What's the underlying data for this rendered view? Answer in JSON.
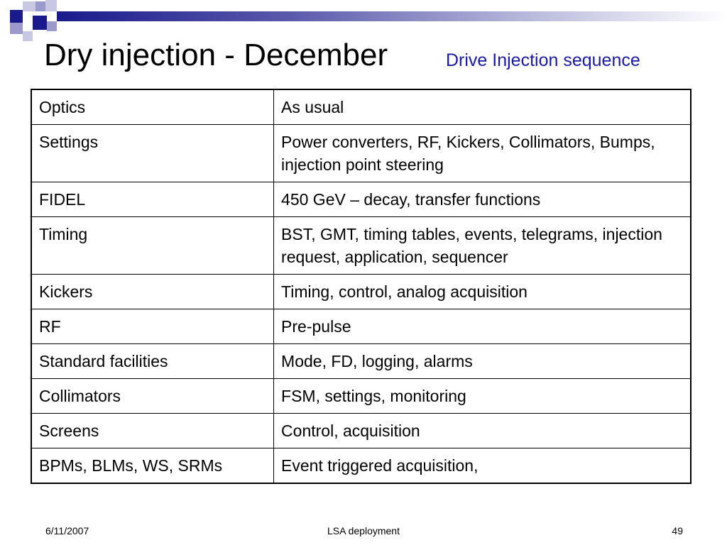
{
  "title": "Dry injection - December",
  "subtitle": "Drive Injection sequence",
  "rows": [
    {
      "label": "Optics",
      "value": "As usual"
    },
    {
      "label": "Settings",
      "value": "Power converters, RF, Kickers, Collimators, Bumps, injection point steering"
    },
    {
      "label": "FIDEL",
      "value": "450 GeV – decay, transfer functions"
    },
    {
      "label": "Timing",
      "value": "BST, GMT, timing tables, events, telegrams, injection request, application, sequencer"
    },
    {
      "label": "Kickers",
      "value": "Timing, control, analog acquisition"
    },
    {
      "label": "RF",
      "value": "Pre-pulse"
    },
    {
      "label": "Standard facilities",
      "value": "Mode, FD, logging, alarms"
    },
    {
      "label": "Collimators",
      "value": "FSM, settings, monitoring"
    },
    {
      "label": "Screens",
      "value": "Control, acquisition"
    },
    {
      "label": "BPMs, BLMs, WS, SRMs",
      "value": "Event triggered acquisition,"
    }
  ],
  "footer": {
    "date": "6/11/2007",
    "center": "LSA deployment",
    "page": "49"
  },
  "colors": {
    "accent": "#1a1a8c",
    "subtitle": "#1a1aa8"
  }
}
